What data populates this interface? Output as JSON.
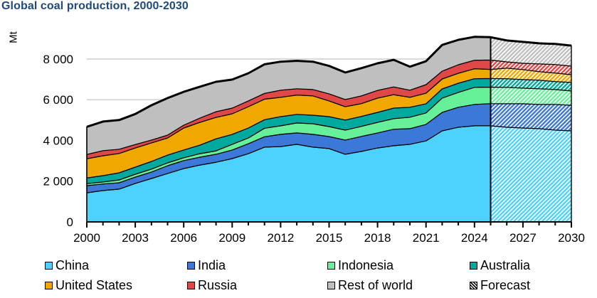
{
  "chart_data": {
    "type": "area",
    "stacked": true,
    "title": "Global coal production, 2000-2030",
    "xlabel": "",
    "ylabel": "Mt",
    "xlim": [
      2000,
      2030
    ],
    "ylim": [
      0,
      8000
    ],
    "ymax_axis": 9000,
    "grid": true,
    "x": [
      2000,
      2001,
      2002,
      2003,
      2004,
      2005,
      2006,
      2007,
      2008,
      2009,
      2010,
      2011,
      2012,
      2013,
      2014,
      2015,
      2016,
      2017,
      2018,
      2019,
      2020,
      2021,
      2022,
      2023,
      2024,
      2025,
      2026,
      2027,
      2028,
      2029,
      2030
    ],
    "x_ticks": [
      "2000",
      "2003",
      "2006",
      "2009",
      "2012",
      "2015",
      "2018",
      "2021",
      "2024",
      "2027",
      "2030"
    ],
    "x_tick_values": [
      2000,
      2003,
      2006,
      2009,
      2012,
      2015,
      2018,
      2021,
      2024,
      2027,
      2030
    ],
    "y_ticks": [
      "0",
      "2 000",
      "4 000",
      "6 000",
      "8 000"
    ],
    "y_tick_values": [
      0,
      2000,
      4000,
      6000,
      8000
    ],
    "forecast_start": 2025,
    "legend_position": "bottom",
    "series": [
      {
        "name": "China",
        "color": "#4dd2ff",
        "values": [
          1430,
          1540,
          1610,
          1890,
          2130,
          2380,
          2620,
          2790,
          2930,
          3110,
          3350,
          3670,
          3700,
          3810,
          3670,
          3600,
          3320,
          3460,
          3630,
          3740,
          3810,
          3980,
          4470,
          4650,
          4720,
          4720,
          4650,
          4610,
          4580,
          4510,
          4470
        ]
      },
      {
        "name": "India",
        "color": "#3c78d8",
        "values": [
          350,
          320,
          310,
          310,
          320,
          380,
          390,
          390,
          390,
          420,
          490,
          510,
          600,
          560,
          630,
          590,
          700,
          740,
          740,
          810,
          770,
          810,
          910,
          980,
          1050,
          1090,
          1150,
          1190,
          1190,
          1260,
          1260
        ]
      },
      {
        "name": "Indonesia",
        "color": "#66f09a",
        "values": [
          100,
          100,
          140,
          140,
          140,
          140,
          140,
          170,
          170,
          280,
          280,
          420,
          420,
          490,
          520,
          490,
          490,
          490,
          520,
          520,
          560,
          560,
          700,
          730,
          840,
          810,
          810,
          770,
          770,
          730,
          700
        ]
      },
      {
        "name": "Australia",
        "color": "#00a99d",
        "values": [
          280,
          310,
          350,
          350,
          380,
          380,
          380,
          420,
          590,
          490,
          490,
          420,
          450,
          420,
          420,
          490,
          490,
          490,
          490,
          520,
          490,
          450,
          450,
          450,
          420,
          420,
          420,
          420,
          420,
          390,
          420
        ]
      },
      {
        "name": "United States",
        "color": "#f0a800",
        "values": [
          940,
          980,
          950,
          940,
          910,
          840,
          1080,
          1120,
          1050,
          1010,
          1050,
          1010,
          950,
          950,
          950,
          770,
          660,
          630,
          700,
          660,
          490,
          520,
          490,
          490,
          490,
          450,
          520,
          490,
          420,
          420,
          380
        ]
      },
      {
        "name": "Russia",
        "color": "#e04848",
        "values": [
          210,
          250,
          210,
          170,
          140,
          140,
          140,
          210,
          280,
          280,
          280,
          280,
          350,
          310,
          310,
          350,
          350,
          380,
          380,
          380,
          350,
          420,
          380,
          420,
          420,
          460,
          310,
          310,
          380,
          420,
          420
        ]
      },
      {
        "name": "Rest of world",
        "color": "#bfbfbf",
        "values": [
          1360,
          1430,
          1430,
          1500,
          1710,
          1820,
          1640,
          1540,
          1470,
          1400,
          1360,
          1430,
          1400,
          1370,
          1370,
          1370,
          1330,
          1360,
          1330,
          1330,
          1150,
          1150,
          1290,
          1220,
          1150,
          1120,
          1050,
          1050,
          1010,
          1010,
          1010
        ]
      }
    ],
    "legend": [
      {
        "label": "China",
        "color": "#4dd2ff"
      },
      {
        "label": "India",
        "color": "#3c78d8"
      },
      {
        "label": "Indonesia",
        "color": "#66f09a"
      },
      {
        "label": "Australia",
        "color": "#00a99d"
      },
      {
        "label": "United States",
        "color": "#f0a800"
      },
      {
        "label": "Russia",
        "color": "#e04848"
      },
      {
        "label": "Rest of world",
        "color": "#bfbfbf"
      },
      {
        "label": "Forecast",
        "color": "hatch"
      }
    ]
  }
}
